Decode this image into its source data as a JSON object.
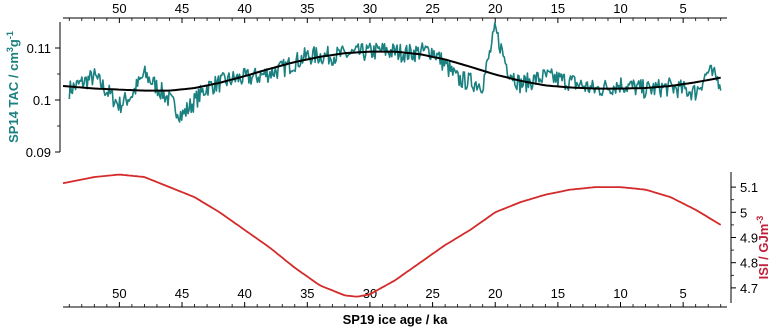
{
  "chart_data": [
    {
      "type": "line",
      "panel": "top",
      "x_axis_position": "top",
      "ylabel": "SP14 TAC / cm3g-1",
      "ylabel_parts": {
        "base": "SP14 TAC / cm",
        "sup1": "3",
        "mid": "g",
        "sup2": "-1"
      },
      "ylim": [
        0.09,
        0.115
      ],
      "yticks": [
        0.09,
        0.1,
        0.11
      ],
      "ytick_labels": [
        "0.09",
        "0.1",
        "0.11"
      ],
      "xlim": [
        54.5,
        1.5
      ],
      "xticks": [
        50,
        45,
        40,
        35,
        30,
        25,
        20,
        15,
        10,
        5
      ],
      "xtick_labels": [
        "50",
        "45",
        "40",
        "35",
        "30",
        "25",
        "20",
        "15",
        "10",
        "5"
      ],
      "grid": false,
      "series": [
        {
          "role": "raw",
          "color": "#1a8080",
          "x": [
            54,
            52,
            50,
            49,
            48,
            46,
            45,
            43,
            41,
            39,
            37,
            35,
            33,
            31,
            29,
            27,
            25,
            23,
            21,
            20,
            19,
            18,
            16,
            14,
            12,
            10,
            8,
            6,
            4,
            3,
            2
          ],
          "values": [
            0.102,
            0.1045,
            0.099,
            0.101,
            0.105,
            0.1,
            0.097,
            0.1025,
            0.104,
            0.1045,
            0.106,
            0.1085,
            0.1085,
            0.109,
            0.1095,
            0.109,
            0.1095,
            0.104,
            0.103,
            0.1135,
            0.106,
            0.103,
            0.1045,
            0.1035,
            0.102,
            0.103,
            0.102,
            0.1025,
            0.1015,
            0.1055,
            0.1035
          ],
          "noise_amplitude": 0.0018
        },
        {
          "role": "smooth",
          "color": "#000000",
          "x": [
            54.5,
            52,
            50,
            48,
            46,
            44,
            42,
            40,
            38,
            36,
            34,
            32,
            30,
            28,
            26,
            24,
            22,
            20,
            18,
            16,
            14,
            12,
            10,
            8,
            6,
            4,
            2
          ],
          "values": [
            0.1027,
            0.1022,
            0.102,
            0.1018,
            0.1018,
            0.1023,
            0.1033,
            0.1046,
            0.106,
            0.1073,
            0.1083,
            0.109,
            0.1093,
            0.1093,
            0.1088,
            0.1078,
            0.1064,
            0.1049,
            0.1037,
            0.1028,
            0.1024,
            0.1022,
            0.1022,
            0.1023,
            0.1027,
            0.1034,
            0.1043
          ]
        }
      ]
    },
    {
      "type": "line",
      "panel": "bottom",
      "x_axis_position": "bottom",
      "xlabel": "SP19 ice age / ka",
      "ylabel": "ISI / GJm-3",
      "ylabel_parts": {
        "base": "ISI / GJm",
        "sup": "-3"
      },
      "y_axis_position": "right",
      "ylim": [
        4.64,
        5.16
      ],
      "yticks": [
        4.7,
        4.8,
        4.9,
        5.0,
        5.1
      ],
      "ytick_labels": [
        "4.7",
        "4.8",
        "4.9",
        "5",
        "5.1"
      ],
      "xlim": [
        54.5,
        1.5
      ],
      "xticks": [
        50,
        45,
        40,
        35,
        30,
        25,
        20,
        15,
        10,
        5
      ],
      "xtick_labels": [
        "50",
        "45",
        "40",
        "35",
        "30",
        "25",
        "20",
        "15",
        "10",
        "5"
      ],
      "grid": false,
      "series": [
        {
          "color": "#d42a2a",
          "x": [
            54.5,
            52,
            50,
            48,
            46,
            44,
            42,
            40,
            38,
            36,
            34,
            32,
            31,
            30,
            28,
            26,
            24,
            22,
            20,
            18,
            16,
            14,
            12,
            10,
            8,
            6,
            4,
            2
          ],
          "values": [
            5.115,
            5.14,
            5.15,
            5.14,
            5.1,
            5.06,
            5.0,
            4.93,
            4.86,
            4.78,
            4.71,
            4.67,
            4.665,
            4.675,
            4.73,
            4.8,
            4.87,
            4.93,
            5.0,
            5.04,
            5.07,
            5.09,
            5.1,
            5.1,
            5.09,
            5.06,
            5.01,
            4.95
          ]
        }
      ]
    }
  ],
  "colors": {
    "tac_axis_label": "#1a8080",
    "isi_axis_label": "#c0203a",
    "axis": "#000000"
  }
}
